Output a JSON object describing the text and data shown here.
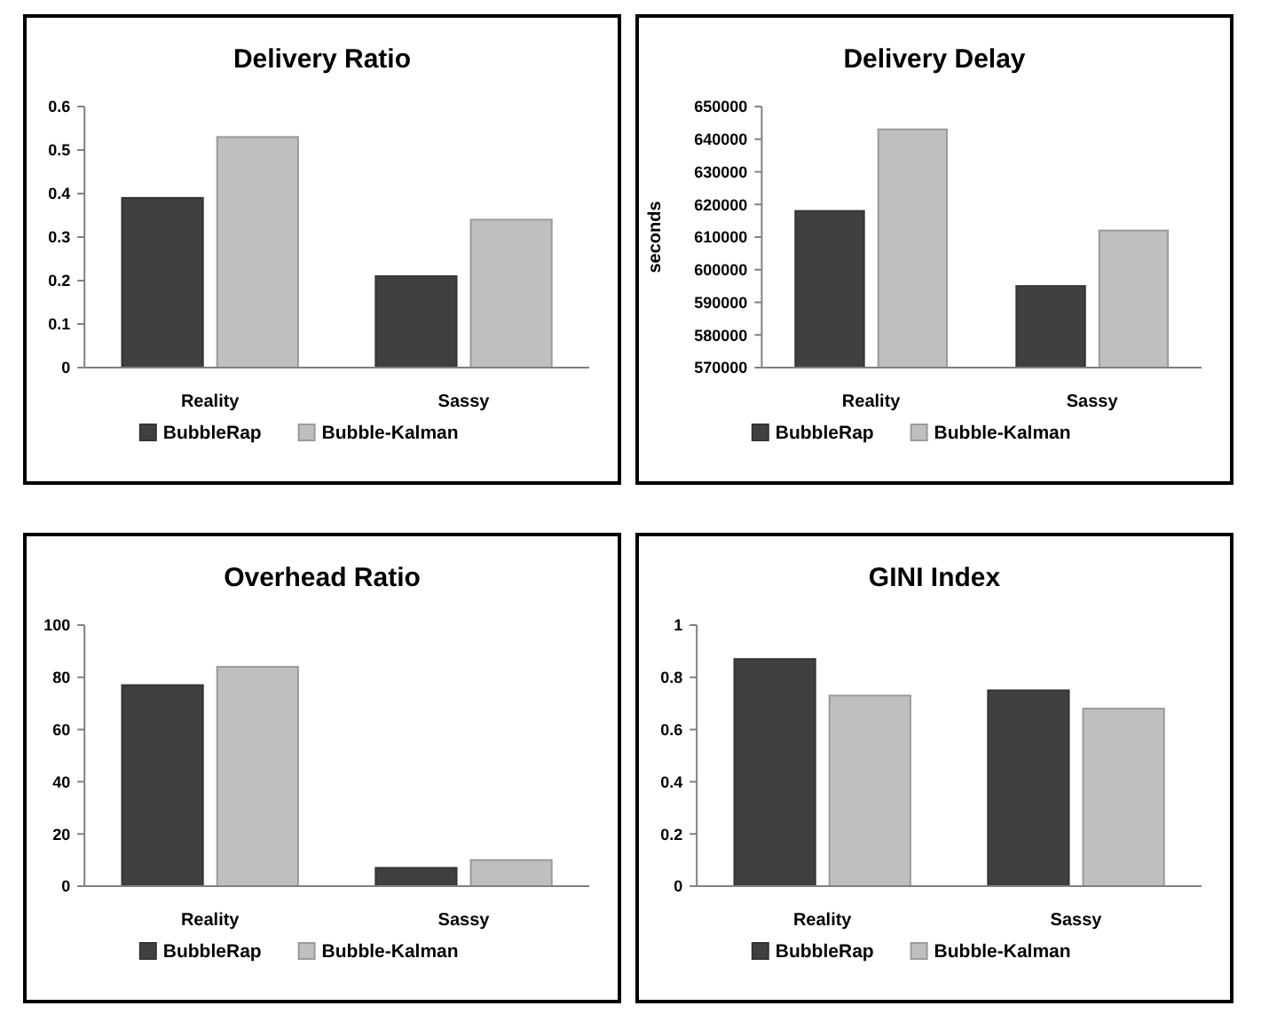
{
  "chart_data": [
    {
      "type": "bar",
      "title": "Delivery Ratio",
      "categories": [
        "Reality",
        "Sassy"
      ],
      "series": [
        {
          "name": "BubbleRap",
          "color": "#404040",
          "values": [
            0.39,
            0.21
          ]
        },
        {
          "name": "Bubble-Kalman",
          "color": "#bfbfbf",
          "values": [
            0.53,
            0.34
          ]
        }
      ],
      "ylim": [
        0,
        0.6
      ],
      "yticks": [
        0,
        0.1,
        0.2,
        0.3,
        0.4,
        0.5,
        0.6
      ],
      "legend": "bottom"
    },
    {
      "type": "bar",
      "title": "Delivery Delay",
      "ylabel": "seconds",
      "categories": [
        "Reality",
        "Sassy"
      ],
      "series": [
        {
          "name": "BubbleRap",
          "color": "#404040",
          "values": [
            618000,
            595000
          ]
        },
        {
          "name": "Bubble-Kalman",
          "color": "#bfbfbf",
          "values": [
            643000,
            612000
          ]
        }
      ],
      "ylim": [
        570000,
        650000
      ],
      "yticks": [
        570000,
        580000,
        590000,
        600000,
        610000,
        620000,
        630000,
        640000,
        650000
      ],
      "legend": "bottom"
    },
    {
      "type": "bar",
      "title": "Overhead Ratio",
      "categories": [
        "Reality",
        "Sassy"
      ],
      "series": [
        {
          "name": "BubbleRap",
          "color": "#404040",
          "values": [
            77,
            7
          ]
        },
        {
          "name": "Bubble-Kalman",
          "color": "#bfbfbf",
          "values": [
            84,
            10
          ]
        }
      ],
      "ylim": [
        0,
        100
      ],
      "yticks": [
        0,
        20,
        40,
        60,
        80,
        100
      ],
      "legend": "bottom"
    },
    {
      "type": "bar",
      "title": "GINI Index",
      "categories": [
        "Reality",
        "Sassy"
      ],
      "series": [
        {
          "name": "BubbleRap",
          "color": "#404040",
          "values": [
            0.87,
            0.75
          ]
        },
        {
          "name": "Bubble-Kalman",
          "color": "#bfbfbf",
          "values": [
            0.73,
            0.68
          ]
        }
      ],
      "ylim": [
        0,
        1
      ],
      "yticks": [
        0,
        0.2,
        0.4,
        0.6,
        0.8,
        1
      ],
      "legend": "bottom"
    }
  ]
}
